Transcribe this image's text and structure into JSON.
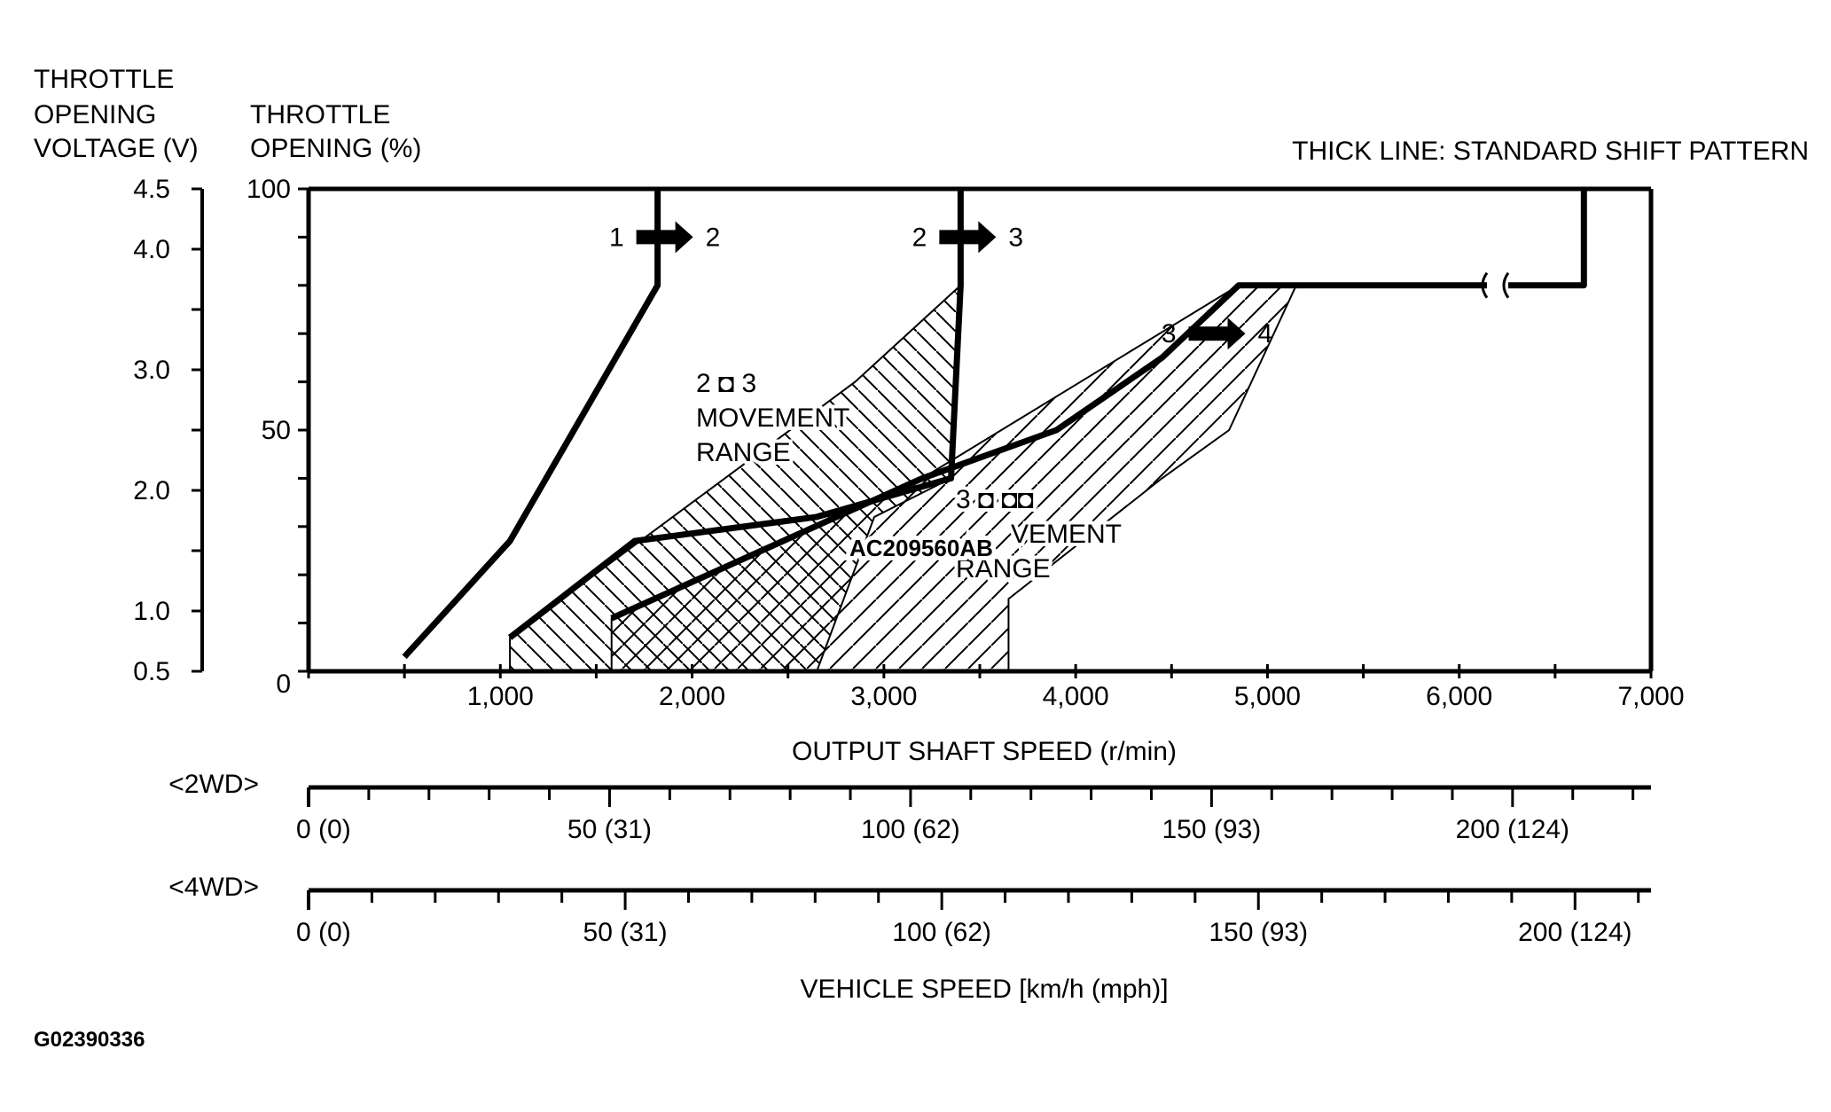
{
  "chart_data": {
    "type": "line",
    "title": "",
    "legend_note": "THICK LINE: STANDARD SHIFT PATTERN",
    "axes": {
      "left_voltage": {
        "label_lines": [
          "THROTTLE",
          "OPENING",
          "VOLTAGE (V)"
        ],
        "ticks": [
          "4.5",
          "4.0",
          "3.0",
          "2.0",
          "1.0",
          "0.5"
        ],
        "tick_values": [
          4.5,
          4.0,
          3.0,
          2.0,
          1.0,
          0.5
        ]
      },
      "left_percent": {
        "label_lines": [
          "THROTTLE",
          "OPENING (%)"
        ],
        "ticks": [
          "100",
          "50",
          "0"
        ],
        "tick_values": [
          100,
          50,
          0
        ],
        "ylim": [
          0,
          100
        ]
      },
      "x": {
        "label": "OUTPUT SHAFT SPEED (r/min)",
        "ticks": [
          "1,000",
          "2,000",
          "3,000",
          "4,000",
          "5,000",
          "6,000",
          "7,000"
        ],
        "tick_values": [
          1000,
          2000,
          3000,
          4000,
          5000,
          6000,
          7000
        ],
        "xlim": [
          0,
          7000
        ]
      },
      "vehicle_speed": {
        "label": "VEHICLE SPEED [km/h (mph)]",
        "scales": [
          {
            "name": "<2WD>",
            "ticks": [
              "0 (0)",
              "50 (31)",
              "100 (62)",
              "150 (93)",
              "200 (124)"
            ],
            "tick_values": [
              0,
              50,
              100,
              150,
              200
            ],
            "max_kmh": 223
          },
          {
            "name": "<4WD>",
            "ticks": [
              "0 (0)",
              "50 (31)",
              "100 (62)",
              "150 (93)",
              "200 (124)"
            ],
            "tick_values": [
              0,
              50,
              100,
              150,
              200
            ],
            "max_kmh": 212
          }
        ]
      }
    },
    "shift_lines": [
      {
        "label_from": "1",
        "label_to": "2",
        "points": [
          [
            500,
            3
          ],
          [
            1050,
            27
          ],
          [
            1820,
            80
          ],
          [
            1820,
            100
          ]
        ]
      },
      {
        "label_from": "2",
        "label_to": "3",
        "points": [
          [
            1050,
            7
          ],
          [
            1700,
            27
          ],
          [
            2650,
            32
          ],
          [
            3350,
            40
          ],
          [
            3400,
            80
          ],
          [
            3400,
            100
          ]
        ]
      },
      {
        "label_from": "3",
        "label_to": "4",
        "points": [
          [
            1580,
            11
          ],
          [
            3200,
            40
          ],
          [
            3900,
            50
          ],
          [
            4450,
            65
          ],
          [
            4850,
            80
          ],
          [
            6650,
            80
          ],
          [
            6650,
            100
          ]
        ]
      }
    ],
    "movement_ranges": [
      {
        "label_lines": [
          "2 ◘ 3",
          "MOVEMENT",
          "RANGE"
        ],
        "points": [
          [
            1050,
            7
          ],
          [
            1050,
            0
          ],
          [
            2650,
            0
          ],
          [
            2950,
            32
          ],
          [
            3350,
            40
          ],
          [
            3400,
            80
          ],
          [
            2850,
            60
          ]
        ]
      },
      {
        "label_lines": [
          "3 ◘ ◘◘",
          "VEMENT",
          "RANGE"
        ],
        "points": [
          [
            1580,
            11
          ],
          [
            1580,
            0
          ],
          [
            3650,
            0
          ],
          [
            3650,
            15
          ],
          [
            4450,
            40
          ],
          [
            4800,
            50
          ],
          [
            5150,
            80
          ],
          [
            4850,
            80
          ],
          [
            3200,
            40
          ]
        ]
      }
    ],
    "annotations": [
      "AC209560AB",
      "G02390336"
    ]
  }
}
